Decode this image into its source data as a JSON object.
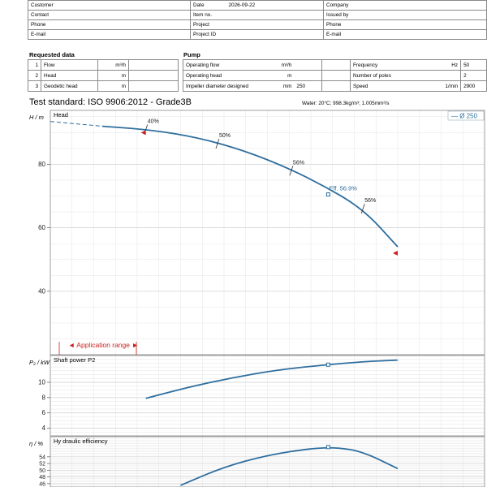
{
  "header": {
    "rows": [
      [
        "Customer",
        "Date",
        "2026-09-22",
        "Company"
      ],
      [
        "Contact",
        "Item no.",
        "",
        "Issued by"
      ],
      [
        "Phone",
        "Project",
        "",
        "Phone"
      ],
      [
        "E-mail",
        "Project ID",
        "",
        "E-mail"
      ]
    ]
  },
  "requested": {
    "title": "Requested data",
    "rows": [
      {
        "n": "1",
        "label": "Flow",
        "unit": "m³/h",
        "value": ""
      },
      {
        "n": "2",
        "label": "Head",
        "unit": "m",
        "value": ""
      },
      {
        "n": "3",
        "label": "Geodetic head",
        "unit": "m",
        "value": ""
      }
    ]
  },
  "pump": {
    "title": "Pump",
    "rows": [
      {
        "label": "Operating flow",
        "unit": "m³/h",
        "value": "",
        "label2": "Frequency",
        "unit2": "Hz",
        "value2": "50"
      },
      {
        "label": "Operating head",
        "unit": "m",
        "value": "",
        "label2": "Number of poles",
        "unit2": "",
        "value2": "2"
      },
      {
        "label": "Impeller diameter designed",
        "unit": "mm",
        "value": "250",
        "label2": "Speed",
        "unit2": "1/min",
        "value2": "2900"
      }
    ]
  },
  "test_standard": "Test standard: ISO 9906:2012 - Grade3B",
  "water_note": "Water: 20°C; 998.3kg/m³; 1.005mm²/s",
  "colors": {
    "curve": "#2e6e9e",
    "marker": "#cc1f1f",
    "grid": "#e4e4e4"
  },
  "chart_data": [
    {
      "type": "line",
      "title": "Head",
      "ylabel": "H / m",
      "ylim": [
        20,
        97
      ],
      "yticks": [
        40,
        60,
        80
      ],
      "legend": "— Ø 250",
      "legend_position": "top-right",
      "xlim": [
        0,
        1
      ],
      "series": [
        {
          "name": "Ø 250",
          "x": [
            0.12,
            0.22,
            0.32,
            0.42,
            0.52,
            0.62,
            0.72,
            0.8
          ],
          "values": [
            92,
            91,
            89,
            85.5,
            80.5,
            74,
            66,
            54
          ]
        }
      ],
      "dashed_extension": {
        "x": [
          0,
          0.12
        ],
        "values": [
          93.5,
          92
        ]
      },
      "efficiency_marks": [
        {
          "label": "40%",
          "x": 0.22,
          "y": 91
        },
        {
          "label": "50%",
          "x": 0.385,
          "y": 86.5
        },
        {
          "label": "56%",
          "x": 0.555,
          "y": 78
        },
        {
          "label": "56%",
          "x": 0.72,
          "y": 66
        }
      ],
      "operating_point": {
        "label": "Eff.  56.9%",
        "x": 0.64,
        "y": 70.5
      },
      "range_limits": [
        {
          "x": 0.22,
          "y": 90
        },
        {
          "x": 0.8,
          "y": 52
        }
      ],
      "application_range_label": "◄ Application range ►"
    },
    {
      "type": "line",
      "title": "Shaft power P2",
      "ylabel": "P₂ / kW",
      "ylim": [
        3,
        13.5
      ],
      "yticks": [
        4,
        6,
        8,
        10
      ],
      "xlim": [
        0,
        1
      ],
      "series": [
        {
          "name": "Shaft power P2",
          "x": [
            0.22,
            0.32,
            0.42,
            0.52,
            0.62,
            0.72,
            0.8
          ],
          "values": [
            7.9,
            9.4,
            10.6,
            11.6,
            12.2,
            12.7,
            12.9
          ]
        }
      ],
      "operating_point": {
        "x": 0.64,
        "y": 12.3
      }
    },
    {
      "type": "line",
      "title": "Hy draulic efficiency",
      "ylabel": "η / %",
      "ylim": [
        45,
        60
      ],
      "yticks": [
        46,
        48,
        50,
        52,
        54
      ],
      "xlim": [
        0,
        1
      ],
      "series": [
        {
          "name": "Hydraulic efficiency",
          "x": [
            0.3,
            0.4,
            0.5,
            0.6,
            0.66,
            0.72,
            0.8
          ],
          "values": [
            45.5,
            51,
            54.5,
            56.5,
            56.8,
            55.5,
            50.5
          ]
        }
      ],
      "operating_point": {
        "x": 0.64,
        "y": 56.9
      }
    }
  ]
}
